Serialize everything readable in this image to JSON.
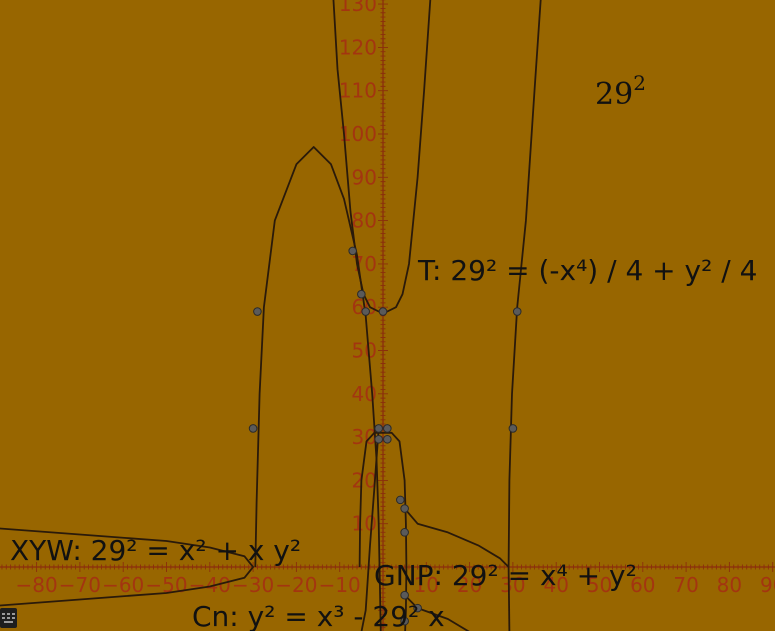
{
  "colors": {
    "background": "#986600",
    "axis": "#8B2E0C",
    "tick_text": "#A33510",
    "curve": "#2A1A0A",
    "point_fill": "#5A5A5A",
    "point_stroke": "#2A2A2A"
  },
  "icons": {
    "keyboard": "keyboard-icon"
  },
  "chart_data": {
    "type": "line",
    "title": "",
    "xlabel": "",
    "ylabel": "",
    "grid": false,
    "xlim": [
      -90,
      92
    ],
    "ylim": [
      -15,
      132
    ],
    "x_ticks": [
      "−80",
      "−70",
      "−60",
      "−50",
      "−40",
      "−30",
      "−20",
      "−10",
      "10",
      "20",
      "30",
      "40",
      "50",
      "60",
      "70",
      "80",
      "90"
    ],
    "y_ticks": [
      "10",
      "20",
      "30",
      "40",
      "50",
      "60",
      "70",
      "80",
      "90",
      "100",
      "110",
      "120",
      "130"
    ],
    "constant": {
      "base": "29",
      "exponent": "2"
    },
    "series": [
      {
        "name": "T: 29² = (-x⁴) / 4 + y² / 4",
        "equation": "(-x^4)/4 + y^2/4 = 841"
      },
      {
        "name": "XYW: 29² = x² + x y²",
        "equation": "x^2 + x*y^2 = 841"
      },
      {
        "name": "GNP: 29² = x⁴ + y²",
        "equation": "x^4 + y^2 = 841"
      },
      {
        "name": "Cn: y² = x³ - 29² x",
        "equation": "y^2 = x^3 - 841*x"
      }
    ],
    "points": [
      {
        "x": -29,
        "y": 59
      },
      {
        "x": 31,
        "y": 59
      },
      {
        "x": -30,
        "y": 32
      },
      {
        "x": 30,
        "y": 32
      },
      {
        "x": -7,
        "y": 73
      },
      {
        "x": -5,
        "y": 63
      },
      {
        "x": -4,
        "y": 59
      },
      {
        "x": 0,
        "y": 59
      },
      {
        "x": -1,
        "y": 32
      },
      {
        "x": 1,
        "y": 32
      },
      {
        "x": -1,
        "y": 29.5
      },
      {
        "x": 1,
        "y": 29.5
      },
      {
        "x": 4,
        "y": 15.5
      },
      {
        "x": 5,
        "y": 13.5
      },
      {
        "x": 5,
        "y": 8
      },
      {
        "x": 5,
        "y": -6.5
      },
      {
        "x": 8,
        "y": -9.5
      },
      {
        "x": 5,
        "y": -12.5
      }
    ]
  }
}
